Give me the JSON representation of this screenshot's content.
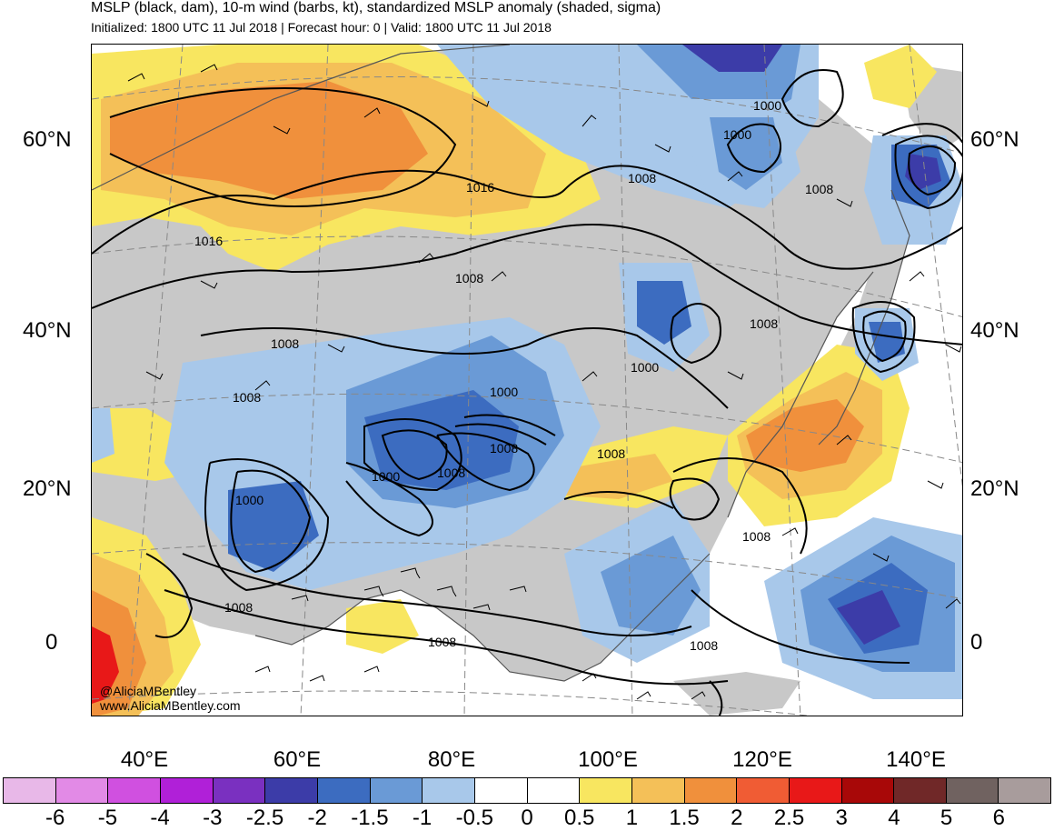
{
  "title": {
    "line1": "MSLP (black, dam), 10-m wind (barbs, kt), standardized MSLP anomaly (shaded, sigma)",
    "line2": "Initialized: 1800 UTC 11 Jul 2018 | Forecast hour: 0 | Valid: 1800 UTC 11 Jul 2018"
  },
  "axes": {
    "lat_labels": [
      "60°N",
      "40°N",
      "20°N",
      "0"
    ],
    "lon_labels": [
      "40°E",
      "60°E",
      "80°E",
      "100°E",
      "120°E",
      "140°E"
    ]
  },
  "credits": {
    "twitter": "@AliciaMBentley",
    "website": "www.AliciaMBentley.com"
  },
  "contour_labels": [
    "1016",
    "1016",
    "1008",
    "1008",
    "1000",
    "1000",
    "1008",
    "1008",
    "1008",
    "1008",
    "1000",
    "1008",
    "1000",
    "1008",
    "1000",
    "1008",
    "1000",
    "1008",
    "1008",
    "1008",
    "1008"
  ],
  "colorbar": {
    "labels": [
      "-6",
      "-5",
      "-4",
      "-3",
      "-2.5",
      "-2",
      "-1.5",
      "-1",
      "-0.5",
      "0",
      "0.5",
      "1",
      "1.5",
      "2",
      "2.5",
      "3",
      "4",
      "5",
      "6"
    ],
    "colors": [
      "#e8b8e8",
      "#e28ae6",
      "#d050e0",
      "#b020d8",
      "#7a30c0",
      "#3c3ca8",
      "#3c6cc0",
      "#6a9ad6",
      "#a8c8ea",
      "#ffffff",
      "#ffffff",
      "#f8e660",
      "#f4c058",
      "#f0903c",
      "#f05c34",
      "#e81818",
      "#a80808",
      "#702828",
      "#706260",
      "#a89c9c"
    ]
  },
  "map_colors": {
    "land": "#c8c8c8",
    "ocean": "#ffffff",
    "contour": "#000000"
  }
}
